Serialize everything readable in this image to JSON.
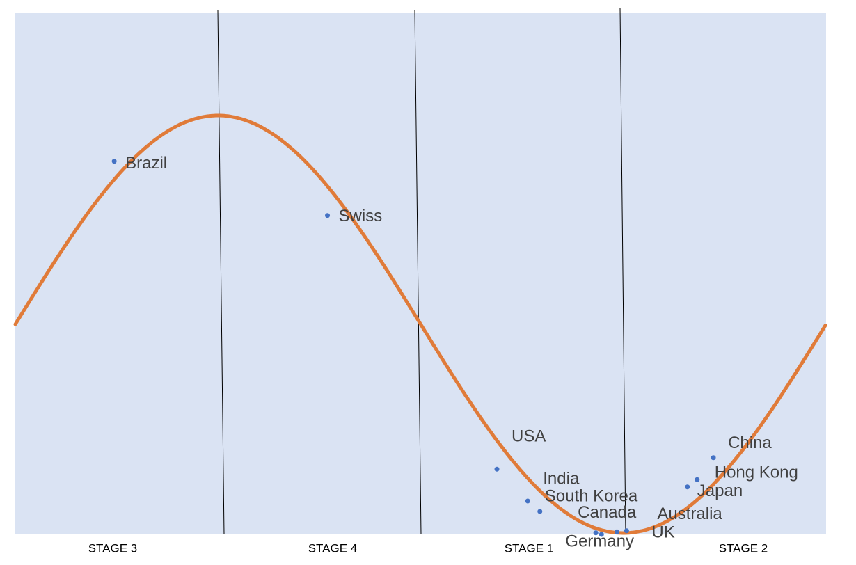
{
  "chart_data": {
    "type": "scatter",
    "stage_labels": [
      "STAGE 3",
      "STAGE 4",
      "STAGE 1",
      "STAGE 2"
    ],
    "labels": [
      "Brazil",
      "Swiss",
      "USA",
      "India",
      "South Korea",
      "Canada",
      "Germany",
      "UK",
      "Australia",
      "Japan",
      "Hong Kong",
      "China"
    ],
    "x": [
      12.2,
      38.5,
      59.4,
      63.2,
      64.7,
      71.6,
      72.3,
      74.2,
      75.4,
      82.9,
      84.1,
      86.1
    ],
    "values": [
      71.5,
      61.1,
      12.5,
      6.4,
      4.4,
      0.3,
      0,
      0.5,
      0.7,
      9.1,
      10.5,
      14.7
    ],
    "xlim": [
      0,
      100
    ],
    "ylim": [
      0,
      100
    ],
    "color": "#4472c4"
  }
}
